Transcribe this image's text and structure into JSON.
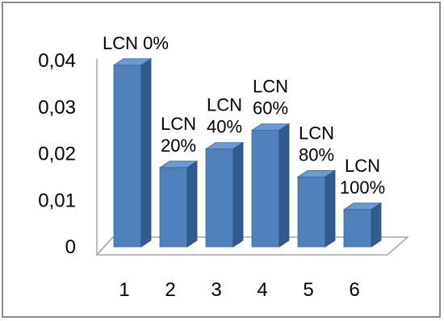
{
  "chart_data": {
    "type": "bar",
    "categories": [
      "1",
      "2",
      "3",
      "4",
      "5",
      "6"
    ],
    "values": [
      0.039,
      0.017,
      0.021,
      0.025,
      0.015,
      0.008
    ],
    "data_labels": [
      [
        "LCN 0%"
      ],
      [
        "LCN",
        "20%"
      ],
      [
        "LCN",
        "40%"
      ],
      [
        "LCN",
        "60%"
      ],
      [
        "LCN",
        "80%"
      ],
      [
        "LCN",
        "100%"
      ]
    ],
    "y_ticks": [
      "0",
      "0,01",
      "0,02",
      "0,03",
      "0,04"
    ],
    "ylim": [
      0,
      0.04
    ],
    "title": "",
    "xlabel": "",
    "ylabel": "",
    "grid": false,
    "style": "3d-column",
    "bar_color": "#4f81bd"
  }
}
